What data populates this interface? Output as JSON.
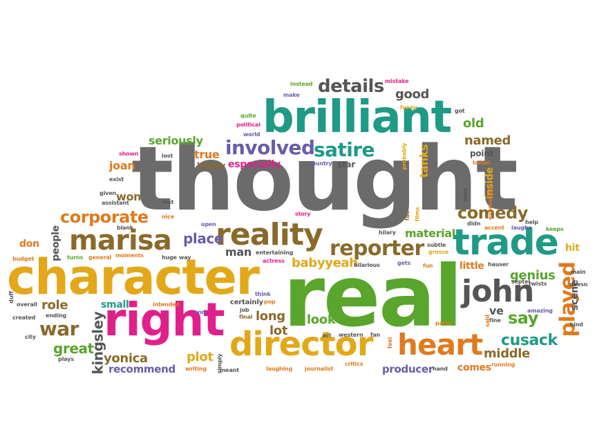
{
  "palette": {
    "gray": "#6b6b6b",
    "green": "#5aa52c",
    "teal": "#1f9a86",
    "orange": "#e07a1e",
    "yellow": "#e2a81a",
    "brown": "#8a6a2a",
    "pink": "#e0208a",
    "purple": "#6b5ca8",
    "darkgray": "#555555"
  },
  "words": [
    {
      "text": "thought",
      "color": "#6b6b6b"
    },
    {
      "text": "real",
      "color": "#5aa52c"
    },
    {
      "text": "character",
      "color": "#e2a81a"
    },
    {
      "text": "brilliant",
      "color": "#1f9a86"
    },
    {
      "text": "right",
      "color": "#e0208a"
    },
    {
      "text": "trade",
      "color": "#1f9a86"
    },
    {
      "text": "director",
      "color": "#e2a81a"
    },
    {
      "text": "marisa",
      "color": "#8a6a2a"
    },
    {
      "text": "reality",
      "color": "#8a6a2a"
    },
    {
      "text": "heart",
      "color": "#e07a1e"
    },
    {
      "text": "john",
      "color": "#555555"
    },
    {
      "text": "reporter",
      "color": "#8a6a2a"
    },
    {
      "text": "involved",
      "color": "#6b5ca8"
    },
    {
      "text": "satire",
      "color": "#1f9a86"
    },
    {
      "text": "details",
      "color": "#555555"
    },
    {
      "text": "comedy",
      "color": "#8a6a2a"
    },
    {
      "text": "played",
      "color": "#e07a1e"
    },
    {
      "text": "corporate",
      "color": "#e07a1e"
    },
    {
      "text": "cusack",
      "color": "#1f9a86"
    },
    {
      "text": "war",
      "color": "#8a6a2a"
    },
    {
      "text": "say",
      "color": "#5aa52c"
    },
    {
      "text": "place",
      "color": "#6b5ca8"
    },
    {
      "text": "man",
      "color": "#555555"
    },
    {
      "text": "babyyeah",
      "color": "#e2a81a"
    },
    {
      "text": "material",
      "color": "#5aa52c"
    },
    {
      "text": "genius",
      "color": "#5aa52c"
    },
    {
      "text": "middle",
      "color": "#8a6a2a"
    },
    {
      "text": "seriously",
      "color": "#5aa52c"
    },
    {
      "text": "named",
      "color": "#8a6a2a"
    },
    {
      "text": "old",
      "color": "#5aa52c"
    },
    {
      "text": "good",
      "color": "#555555"
    },
    {
      "text": "kingsley",
      "color": "#555555"
    },
    {
      "text": "great",
      "color": "#5aa52c"
    },
    {
      "text": "yonica",
      "color": "#8a6a2a"
    },
    {
      "text": "role",
      "color": "#8a6a2a"
    },
    {
      "text": "plot",
      "color": "#e2a81a"
    },
    {
      "text": "long",
      "color": "#8a6a2a"
    },
    {
      "text": "lot",
      "color": "#8a6a2a"
    },
    {
      "text": "look",
      "color": "#5aa52c"
    },
    {
      "text": "recommend",
      "color": "#6b5ca8"
    },
    {
      "text": "producer",
      "color": "#6b5ca8"
    },
    {
      "text": "comes",
      "color": "#e07a1e"
    },
    {
      "text": "joan",
      "color": "#e07a1e"
    },
    {
      "text": "won",
      "color": "#8a6a2a"
    },
    {
      "text": "true",
      "color": "#e07a1e"
    },
    {
      "text": "especially",
      "color": "#e0208a"
    },
    {
      "text": "hillary",
      "color": "#8a6a2a"
    },
    {
      "text": "tanks",
      "color": "#e2a81a"
    },
    {
      "text": "inside",
      "color": "#e2a81a"
    },
    {
      "text": "people",
      "color": "#555555"
    },
    {
      "text": "don",
      "color": "#e07a1e"
    },
    {
      "text": "scene",
      "color": "#555555"
    },
    {
      "text": "small",
      "color": "#1f9a86"
    },
    {
      "text": "little",
      "color": "#e07a1e"
    },
    {
      "text": "ve",
      "color": "#555555"
    },
    {
      "text": "hit",
      "color": "#e2a81a"
    },
    {
      "text": "star",
      "color": "#555555"
    },
    {
      "text": "point",
      "color": "#555555"
    },
    {
      "text": "certainly",
      "color": "#555555"
    },
    {
      "text": "instead",
      "color": "#5aa52c"
    },
    {
      "text": "mistake",
      "color": "#e0208a"
    },
    {
      "text": "make",
      "color": "#6b5ca8"
    },
    {
      "text": "funny",
      "color": "#e2a81a"
    },
    {
      "text": "got",
      "color": "#555555"
    },
    {
      "text": "quite",
      "color": "#5aa52c"
    },
    {
      "text": "political",
      "color": "#e0208a"
    },
    {
      "text": "world",
      "color": "#6b5ca8"
    },
    {
      "text": "shown",
      "color": "#e0208a"
    },
    {
      "text": "lost",
      "color": "#555555"
    },
    {
      "text": "country",
      "color": "#6b5ca8"
    },
    {
      "text": "exist",
      "color": "#555555"
    },
    {
      "text": "given",
      "color": "#555555"
    },
    {
      "text": "assistant",
      "color": "#555555"
    },
    {
      "text": "rest",
      "color": "#555555"
    },
    {
      "text": "nice",
      "color": "#e07a1e"
    },
    {
      "text": "blank",
      "color": "#555555"
    },
    {
      "text": "open",
      "color": "#6b5ca8"
    },
    {
      "text": "story",
      "color": "#e0208a"
    },
    {
      "text": "budget",
      "color": "#e07a1e"
    },
    {
      "text": "turns",
      "color": "#5aa52c"
    },
    {
      "text": "general",
      "color": "#e07a1e"
    },
    {
      "text": "moments",
      "color": "#e07a1e"
    },
    {
      "text": "huge",
      "color": "#555555"
    },
    {
      "text": "way",
      "color": "#555555"
    },
    {
      "text": "entertaining",
      "color": "#555555"
    },
    {
      "text": "actress",
      "color": "#e0208a"
    },
    {
      "text": "hilary",
      "color": "#555555"
    },
    {
      "text": "subtle",
      "color": "#555555"
    },
    {
      "text": "grosse",
      "color": "#e2a81a"
    },
    {
      "text": "hilarious",
      "color": "#555555"
    },
    {
      "text": "fun",
      "color": "#e07a1e"
    },
    {
      "text": "gets",
      "color": "#6b5ca8"
    },
    {
      "text": "hauser",
      "color": "#555555"
    },
    {
      "text": "septel",
      "color": "#555555"
    },
    {
      "text": "twists",
      "color": "#555555"
    },
    {
      "text": "amazing",
      "color": "#6b5ca8"
    },
    {
      "text": "kind",
      "color": "#555555"
    },
    {
      "text": "main",
      "color": "#555555"
    },
    {
      "text": "doesn",
      "color": "#555555"
    },
    {
      "text": "keeps",
      "color": "#5aa52c"
    },
    {
      "text": "help",
      "color": "#555555"
    },
    {
      "text": "accent",
      "color": "#e07a1e"
    },
    {
      "text": "laughs",
      "color": "#6b5ca8"
    },
    {
      "text": "didn",
      "color": "#555555"
    },
    {
      "text": "tomei",
      "color": "#e07a1e"
    },
    {
      "text": "aren",
      "color": "#555555"
    },
    {
      "text": "expression",
      "color": "#e07a1e"
    },
    {
      "text": "fad",
      "color": "#8a6a2a"
    },
    {
      "text": "films",
      "color": "#e2a81a"
    },
    {
      "text": "probably",
      "color": "#e2a81a"
    },
    {
      "text": "duff",
      "color": "#555555"
    },
    {
      "text": "overall",
      "color": "#555555"
    },
    {
      "text": "created",
      "color": "#555555"
    },
    {
      "text": "ending",
      "color": "#555555"
    },
    {
      "text": "city",
      "color": "#555555"
    },
    {
      "text": "intended",
      "color": "#e07a1e"
    },
    {
      "text": "end",
      "color": "#6b5ca8"
    },
    {
      "text": "job",
      "color": "#555555"
    },
    {
      "text": "pop",
      "color": "#e07a1e"
    },
    {
      "text": "think",
      "color": "#6b5ca8"
    },
    {
      "text": "final",
      "color": "#8a6a2a"
    },
    {
      "text": "act",
      "color": "#555555"
    },
    {
      "text": "western",
      "color": "#555555"
    },
    {
      "text": "fan",
      "color": "#555555"
    },
    {
      "text": "parts",
      "color": "#e07a1e"
    },
    {
      "text": "feel",
      "color": "#e07a1e"
    },
    {
      "text": "said",
      "color": "#e07a1e"
    },
    {
      "text": "fine",
      "color": "#555555"
    },
    {
      "text": "plays",
      "color": "#555555"
    },
    {
      "text": "writing",
      "color": "#e07a1e"
    },
    {
      "text": "simply",
      "color": "#555555"
    },
    {
      "text": "meant",
      "color": "#555555"
    },
    {
      "text": "laughing",
      "color": "#e07a1e"
    },
    {
      "text": "journalist",
      "color": "#e07a1e"
    },
    {
      "text": "critics",
      "color": "#e07a1e"
    },
    {
      "text": "hand",
      "color": "#555555"
    },
    {
      "text": "running",
      "color": "#e07a1e"
    }
  ]
}
